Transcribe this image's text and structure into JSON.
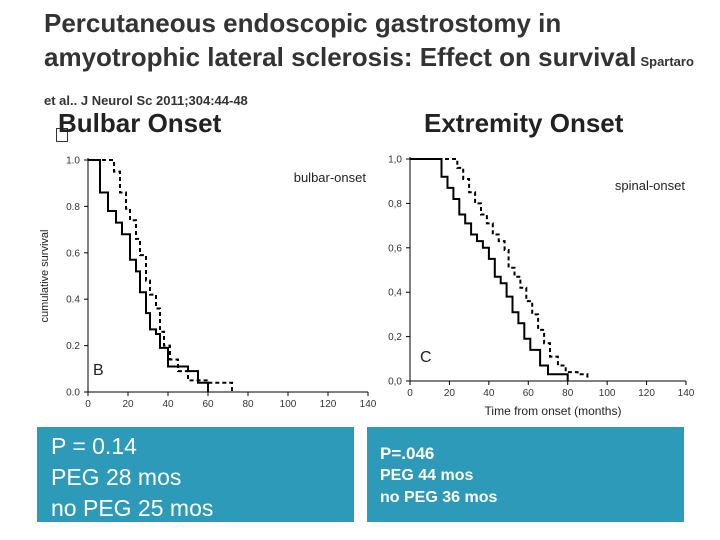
{
  "title": "Percutaneous endoscopic gastrostomy in amyotrophic lateral sclerosis: Effect on survival",
  "citation": "Spartaro et al.. J Neurol Sc 2011;304:44-48",
  "left_heading": "Bulbar Onset",
  "right_heading": "Extremity Onset",
  "left_stats": [
    "P = 0.14",
    "PEG 28 mos",
    "no PEG 25 mos"
  ],
  "right_stats": [
    "P=.046",
    "PEG 44 mos",
    "no PEG 36 mos"
  ],
  "chart_data": [
    {
      "type": "line",
      "panel_label": "B",
      "plot_label": "bulbar-onset",
      "ylabel": "cumulative survival",
      "xlabel": "",
      "xlim": [
        0,
        140
      ],
      "ylim": [
        0,
        1
      ],
      "x_ticks": [
        "0",
        "20",
        "40",
        "60",
        "80",
        "100",
        "120",
        "140"
      ],
      "y_ticks": [
        "0.0",
        "0.2",
        "0.4",
        "0.6",
        "0.8",
        "1.0"
      ],
      "x_tick_values": [
        0,
        20,
        40,
        60,
        80,
        100,
        120,
        140
      ],
      "y_tick_values": [
        0,
        0.2,
        0.4,
        0.6,
        0.8,
        1.0
      ],
      "series": [
        {
          "style": "solid",
          "points": [
            [
              0,
              1.0
            ],
            [
              6,
              1.0
            ],
            [
              6,
              0.86
            ],
            [
              10,
              0.86
            ],
            [
              10,
              0.78
            ],
            [
              14,
              0.78
            ],
            [
              14,
              0.73
            ],
            [
              17,
              0.73
            ],
            [
              17,
              0.68
            ],
            [
              21,
              0.68
            ],
            [
              21,
              0.57
            ],
            [
              24,
              0.57
            ],
            [
              24,
              0.52
            ],
            [
              26,
              0.52
            ],
            [
              26,
              0.43
            ],
            [
              29,
              0.43
            ],
            [
              29,
              0.34
            ],
            [
              31,
              0.34
            ],
            [
              31,
              0.27
            ],
            [
              34,
              0.27
            ],
            [
              34,
              0.25
            ],
            [
              36,
              0.25
            ],
            [
              36,
              0.19
            ],
            [
              40,
              0.19
            ],
            [
              40,
              0.11
            ],
            [
              50,
              0.11
            ],
            [
              50,
              0.09
            ],
            [
              55,
              0.09
            ],
            [
              55,
              0.04
            ],
            [
              60,
              0.04
            ],
            [
              60,
              0.0
            ]
          ]
        },
        {
          "style": "dashed",
          "points": [
            [
              0,
              1.0
            ],
            [
              13,
              1.0
            ],
            [
              13,
              0.95
            ],
            [
              16,
              0.95
            ],
            [
              16,
              0.86
            ],
            [
              19,
              0.86
            ],
            [
              19,
              0.79
            ],
            [
              21,
              0.79
            ],
            [
              21,
              0.74
            ],
            [
              24,
              0.74
            ],
            [
              24,
              0.66
            ],
            [
              26,
              0.66
            ],
            [
              26,
              0.59
            ],
            [
              29,
              0.59
            ],
            [
              29,
              0.48
            ],
            [
              31,
              0.48
            ],
            [
              31,
              0.42
            ],
            [
              34,
              0.42
            ],
            [
              34,
              0.36
            ],
            [
              36,
              0.36
            ],
            [
              36,
              0.26
            ],
            [
              38,
              0.26
            ],
            [
              38,
              0.2
            ],
            [
              41,
              0.2
            ],
            [
              41,
              0.14
            ],
            [
              45,
              0.14
            ],
            [
              45,
              0.09
            ],
            [
              50,
              0.09
            ],
            [
              50,
              0.05
            ],
            [
              60,
              0.05
            ],
            [
              60,
              0.04
            ],
            [
              72,
              0.04
            ],
            [
              72,
              0.0
            ]
          ]
        }
      ]
    },
    {
      "type": "line",
      "panel_label": "C",
      "plot_label": "spinal-onset",
      "xlabel": "Time from onset (months)",
      "ylabel": "",
      "xlim": [
        0,
        140
      ],
      "ylim": [
        0,
        1
      ],
      "x_ticks": [
        "0",
        "20",
        "40",
        "60",
        "80",
        "100",
        "120",
        "140"
      ],
      "y_ticks": [
        "0,0",
        "0,2",
        "0,4",
        "0,6",
        "0,8",
        "1,0"
      ],
      "x_tick_values": [
        0,
        20,
        40,
        60,
        80,
        100,
        120,
        140
      ],
      "y_tick_values": [
        0,
        0.2,
        0.4,
        0.6,
        0.8,
        1.0
      ],
      "series": [
        {
          "style": "solid",
          "points": [
            [
              0,
              1.0
            ],
            [
              16,
              1.0
            ],
            [
              16,
              0.92
            ],
            [
              19,
              0.92
            ],
            [
              19,
              0.87
            ],
            [
              22,
              0.87
            ],
            [
              22,
              0.82
            ],
            [
              25,
              0.82
            ],
            [
              25,
              0.75
            ],
            [
              28,
              0.75
            ],
            [
              28,
              0.71
            ],
            [
              31,
              0.71
            ],
            [
              31,
              0.66
            ],
            [
              34,
              0.66
            ],
            [
              34,
              0.63
            ],
            [
              37,
              0.63
            ],
            [
              37,
              0.6
            ],
            [
              40,
              0.6
            ],
            [
              40,
              0.55
            ],
            [
              43,
              0.55
            ],
            [
              43,
              0.47
            ],
            [
              46,
              0.47
            ],
            [
              46,
              0.44
            ],
            [
              49,
              0.44
            ],
            [
              49,
              0.38
            ],
            [
              52,
              0.38
            ],
            [
              52,
              0.31
            ],
            [
              55,
              0.31
            ],
            [
              55,
              0.26
            ],
            [
              58,
              0.26
            ],
            [
              58,
              0.19
            ],
            [
              61,
              0.19
            ],
            [
              61,
              0.14
            ],
            [
              66,
              0.14
            ],
            [
              66,
              0.07
            ],
            [
              70,
              0.07
            ],
            [
              70,
              0.03
            ],
            [
              80,
              0.03
            ],
            [
              80,
              0.0
            ]
          ]
        },
        {
          "style": "dashed",
          "points": [
            [
              0,
              1.0
            ],
            [
              24,
              1.0
            ],
            [
              24,
              0.96
            ],
            [
              27,
              0.96
            ],
            [
              27,
              0.91
            ],
            [
              30,
              0.91
            ],
            [
              30,
              0.85
            ],
            [
              33,
              0.85
            ],
            [
              33,
              0.8
            ],
            [
              36,
              0.8
            ],
            [
              36,
              0.75
            ],
            [
              39,
              0.75
            ],
            [
              39,
              0.71
            ],
            [
              42,
              0.71
            ],
            [
              42,
              0.66
            ],
            [
              45,
              0.66
            ],
            [
              45,
              0.63
            ],
            [
              48,
              0.63
            ],
            [
              48,
              0.59
            ],
            [
              50,
              0.59
            ],
            [
              50,
              0.51
            ],
            [
              53,
              0.51
            ],
            [
              53,
              0.47
            ],
            [
              56,
              0.47
            ],
            [
              56,
              0.42
            ],
            [
              59,
              0.42
            ],
            [
              59,
              0.36
            ],
            [
              62,
              0.36
            ],
            [
              62,
              0.3
            ],
            [
              65,
              0.3
            ],
            [
              65,
              0.23
            ],
            [
              68,
              0.23
            ],
            [
              68,
              0.17
            ],
            [
              71,
              0.17
            ],
            [
              71,
              0.11
            ],
            [
              75,
              0.11
            ],
            [
              75,
              0.07
            ],
            [
              79,
              0.07
            ],
            [
              79,
              0.04
            ],
            [
              85,
              0.04
            ],
            [
              85,
              0.03
            ],
            [
              90,
              0.03
            ],
            [
              90,
              0.0
            ]
          ]
        }
      ]
    }
  ]
}
